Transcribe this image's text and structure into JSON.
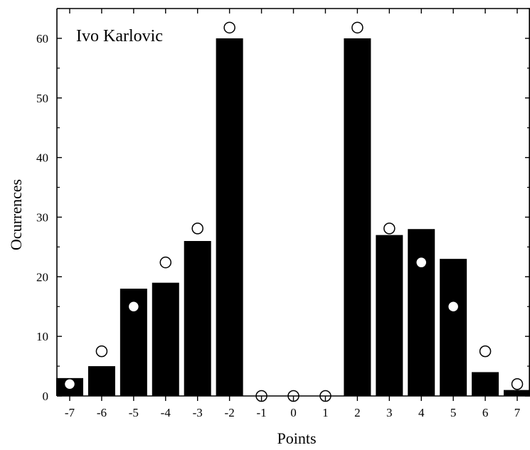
{
  "chart_data": {
    "type": "bar",
    "annotation": "Ivo Karlovic",
    "xlabel": "Points",
    "ylabel": "Ocurrences",
    "xlim": [
      -7.4,
      7.4
    ],
    "ylim": [
      0,
      65
    ],
    "x_ticks": [
      -7,
      -6,
      -5,
      -4,
      -3,
      -2,
      -1,
      0,
      1,
      2,
      3,
      4,
      5,
      6,
      7
    ],
    "y_ticks": [
      0,
      10,
      20,
      30,
      40,
      50,
      60
    ],
    "grid": false,
    "series": [
      {
        "type": "bar",
        "color": "#000000",
        "x": [
          -7,
          -6,
          -5,
          -4,
          -3,
          -2,
          -1,
          0,
          1,
          2,
          3,
          4,
          5,
          6,
          7
        ],
        "values": [
          3,
          5,
          18,
          19,
          26,
          60,
          0,
          0,
          0,
          60,
          27,
          28,
          23,
          4,
          1
        ]
      },
      {
        "type": "scatter",
        "marker": "open-circle",
        "x": [
          -7,
          -6,
          -5,
          -4,
          -3,
          -2,
          -1,
          0,
          1,
          2,
          3,
          4,
          5,
          6,
          7
        ],
        "values": [
          2,
          7.5,
          15,
          22.4,
          28.1,
          61.8,
          0,
          0,
          0,
          61.8,
          28.1,
          22.4,
          15,
          7.5,
          2
        ]
      }
    ]
  }
}
